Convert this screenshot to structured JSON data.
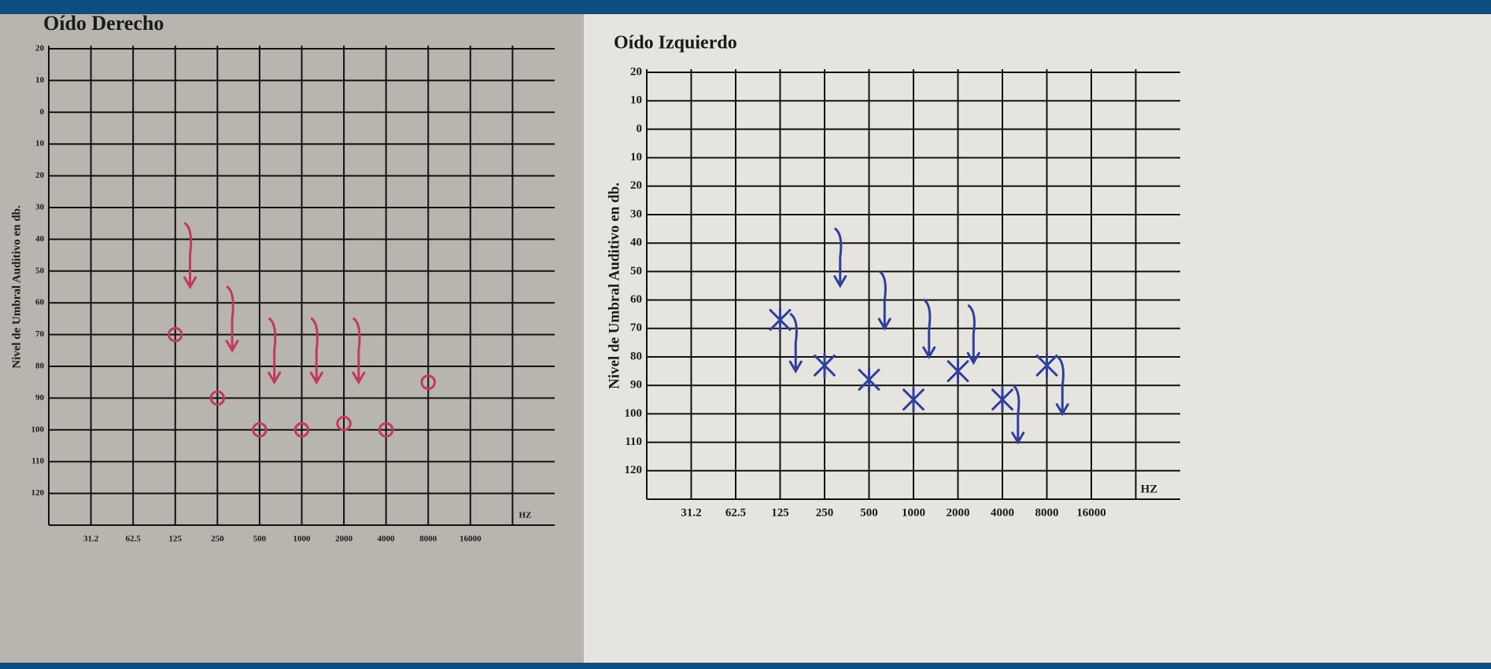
{
  "chart_data": [
    {
      "type": "scatter",
      "title": "Oído Derecho",
      "ylabel": "Nivel de Umbral Auditivo en db.",
      "xlabel": "HZ",
      "categories": [
        "31.2",
        "62.5",
        "125",
        "250",
        "500",
        "1000",
        "2000",
        "4000",
        "8000",
        "16000"
      ],
      "ylim": [
        -20,
        130
      ],
      "inverted": true,
      "yticks": [
        {
          "value": -20,
          "label": "20"
        },
        {
          "value": -10,
          "label": "10"
        },
        0,
        10,
        20,
        30,
        40,
        50,
        60,
        70,
        80,
        90,
        100,
        110,
        120
      ],
      "grid": true,
      "series": [
        {
          "color": "#c4385c",
          "marker": "o",
          "values": [
            null,
            null,
            70,
            90,
            100,
            100,
            98,
            100,
            85,
            null
          ]
        },
        {
          "color": "#c4385c",
          "marker": "arrow",
          "values": [
            null,
            null,
            55,
            75,
            85,
            85,
            85,
            null,
            null,
            null
          ]
        }
      ]
    },
    {
      "type": "scatter",
      "title": "Oído Izquierdo",
      "ylabel": "Nivel de Umbral Auditivo en db.",
      "xlabel": "HZ",
      "categories": [
        "31.2",
        "62.5",
        "125",
        "250",
        "500",
        "1000",
        "2000",
        "4000",
        "8000",
        "16000"
      ],
      "ylim": [
        -20,
        130
      ],
      "inverted": true,
      "yticks": [
        {
          "value": -20,
          "label": "20"
        },
        {
          "value": -10,
          "label": "10"
        },
        0,
        10,
        20,
        30,
        40,
        50,
        60,
        70,
        80,
        90,
        100,
        110,
        120
      ],
      "grid": true,
      "series": [
        {
          "color": "#2f3f9e",
          "marker": "x",
          "values": [
            null,
            null,
            67,
            83,
            88,
            95,
            85,
            95,
            83,
            null
          ]
        },
        {
          "color": "#2f3f9e",
          "marker": "arrow",
          "values": [
            null,
            null,
            85,
            55,
            70,
            80,
            82,
            110,
            100,
            null
          ]
        }
      ]
    }
  ]
}
